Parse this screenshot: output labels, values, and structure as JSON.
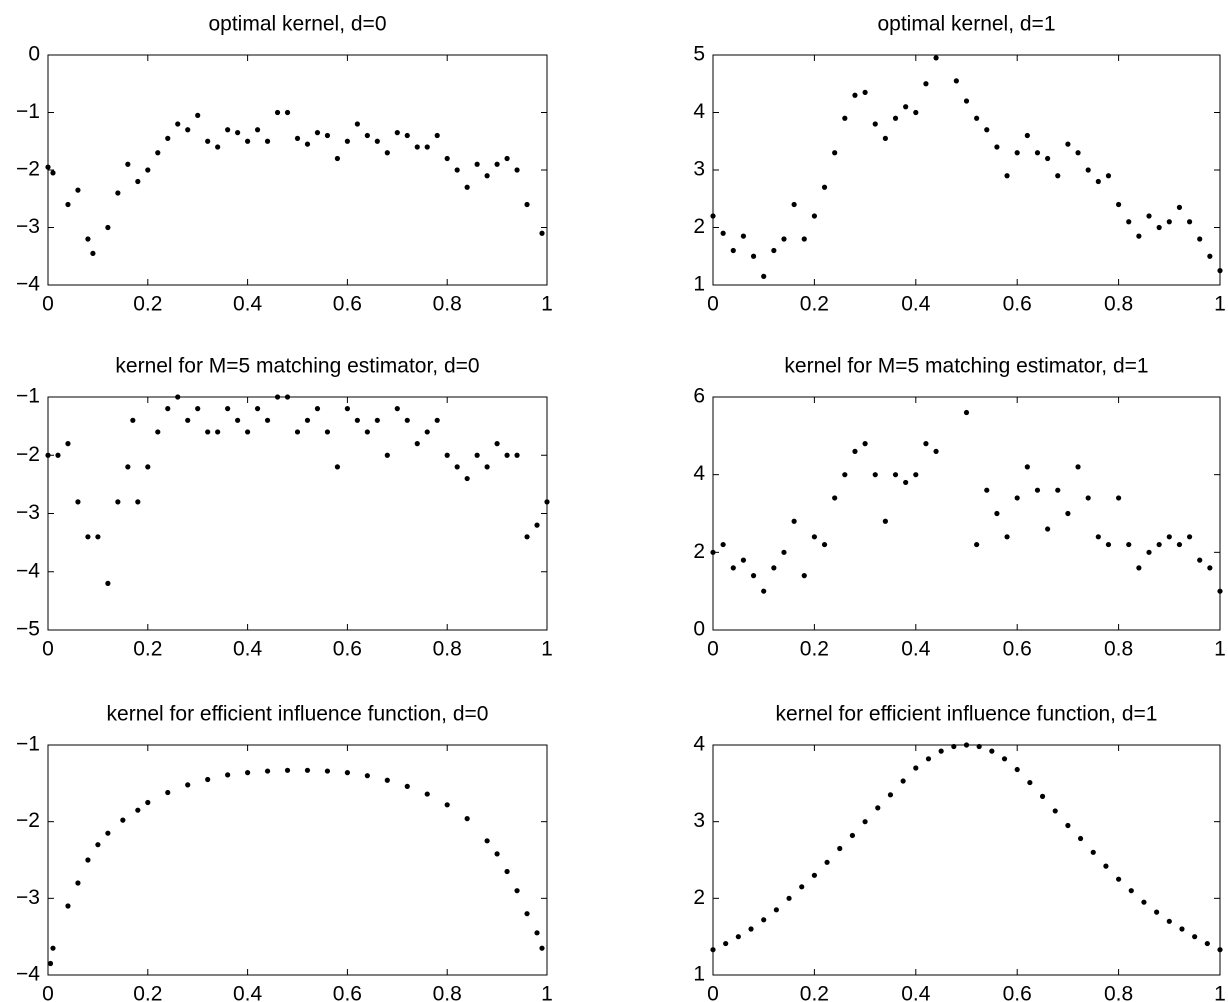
{
  "chart_data": [
    {
      "type": "scatter",
      "title": "optimal kernel, d=0",
      "color": "#000000",
      "xlim": [
        0,
        1
      ],
      "ylim": [
        -4,
        0
      ],
      "xticks": [
        0,
        0.2,
        0.4,
        0.6,
        0.8,
        1
      ],
      "yticks": [
        {
          "value": -4,
          "label": "−4"
        },
        {
          "value": -3,
          "label": "−3"
        },
        {
          "value": -2,
          "label": "−2"
        },
        {
          "value": -1,
          "label": "−1"
        },
        0
      ],
      "x": [
        0,
        0.01,
        0.04,
        0.06,
        0.08,
        0.09,
        0.12,
        0.14,
        0.16,
        0.18,
        0.2,
        0.22,
        0.24,
        0.26,
        0.28,
        0.3,
        0.32,
        0.34,
        0.36,
        0.38,
        0.4,
        0.42,
        0.44,
        0.46,
        0.48,
        0.5,
        0.52,
        0.54,
        0.56,
        0.58,
        0.6,
        0.62,
        0.64,
        0.66,
        0.68,
        0.7,
        0.72,
        0.74,
        0.76,
        0.78,
        0.8,
        0.82,
        0.84,
        0.86,
        0.88,
        0.9,
        0.92,
        0.94,
        0.96,
        0.99
      ],
      "values": [
        -1.95,
        -2.05,
        -2.6,
        -2.35,
        -3.2,
        -3.45,
        -3.0,
        -2.4,
        -1.9,
        -2.2,
        -2.0,
        -1.7,
        -1.45,
        -1.2,
        -1.3,
        -1.05,
        -1.5,
        -1.6,
        -1.3,
        -1.35,
        -1.5,
        -1.3,
        -1.5,
        -1.0,
        -1.0,
        -1.45,
        -1.55,
        -1.35,
        -1.4,
        -1.8,
        -1.5,
        -1.2,
        -1.4,
        -1.5,
        -1.7,
        -1.35,
        -1.4,
        -1.6,
        -1.6,
        -1.4,
        -1.8,
        -2.0,
        -2.3,
        -1.9,
        -2.1,
        -1.9,
        -1.8,
        -2.0,
        -2.6,
        -3.1
      ]
    },
    {
      "type": "scatter",
      "title": "optimal kernel, d=1",
      "color": "#000000",
      "xlim": [
        0,
        1
      ],
      "ylim": [
        1,
        5
      ],
      "xticks": [
        0,
        0.2,
        0.4,
        0.6,
        0.8,
        1
      ],
      "yticks": [
        1,
        2,
        3,
        4,
        5
      ],
      "x": [
        0,
        0.02,
        0.04,
        0.06,
        0.08,
        0.1,
        0.12,
        0.14,
        0.16,
        0.18,
        0.2,
        0.22,
        0.24,
        0.26,
        0.28,
        0.3,
        0.32,
        0.34,
        0.36,
        0.38,
        0.4,
        0.42,
        0.44,
        0.48,
        0.5,
        0.52,
        0.54,
        0.56,
        0.58,
        0.6,
        0.62,
        0.64,
        0.66,
        0.68,
        0.7,
        0.72,
        0.74,
        0.76,
        0.78,
        0.8,
        0.82,
        0.84,
        0.86,
        0.88,
        0.9,
        0.92,
        0.94,
        0.96,
        0.98,
        1
      ],
      "values": [
        2.2,
        1.9,
        1.6,
        1.85,
        1.5,
        1.15,
        1.6,
        1.8,
        2.4,
        1.8,
        2.2,
        2.7,
        3.3,
        3.9,
        4.3,
        4.35,
        3.8,
        3.55,
        3.9,
        4.1,
        4.0,
        4.5,
        4.95,
        4.55,
        4.2,
        3.9,
        3.7,
        3.4,
        2.9,
        3.3,
        3.6,
        3.3,
        3.2,
        2.9,
        3.45,
        3.3,
        3.0,
        2.8,
        2.9,
        2.4,
        2.1,
        1.85,
        2.2,
        2.0,
        2.1,
        2.35,
        2.1,
        1.8,
        1.5,
        1.25
      ]
    },
    {
      "type": "scatter",
      "title": "kernel for M=5 matching estimator, d=0",
      "color": "#000000",
      "xlim": [
        0,
        1
      ],
      "ylim": [
        -5,
        -1
      ],
      "xticks": [
        0,
        0.2,
        0.4,
        0.6,
        0.8,
        1
      ],
      "yticks": [
        {
          "value": -5,
          "label": "−5"
        },
        {
          "value": -4,
          "label": "−4"
        },
        {
          "value": -3,
          "label": "−3"
        },
        {
          "value": -2,
          "label": "−2"
        },
        {
          "value": -1,
          "label": "−1"
        }
      ],
      "x": [
        0,
        0.02,
        0.04,
        0.06,
        0.08,
        0.1,
        0.12,
        0.14,
        0.16,
        0.17,
        0.18,
        0.2,
        0.22,
        0.24,
        0.26,
        0.28,
        0.3,
        0.32,
        0.34,
        0.36,
        0.38,
        0.4,
        0.42,
        0.44,
        0.46,
        0.48,
        0.5,
        0.52,
        0.54,
        0.56,
        0.58,
        0.6,
        0.62,
        0.64,
        0.66,
        0.68,
        0.7,
        0.72,
        0.74,
        0.76,
        0.78,
        0.8,
        0.82,
        0.84,
        0.86,
        0.88,
        0.9,
        0.92,
        0.94,
        0.96,
        0.98,
        1
      ],
      "values": [
        -2.0,
        -2.0,
        -1.8,
        -2.8,
        -3.4,
        -3.4,
        -4.2,
        -2.8,
        -2.2,
        -1.4,
        -2.8,
        -2.2,
        -1.6,
        -1.2,
        -1.0,
        -1.4,
        -1.2,
        -1.6,
        -1.6,
        -1.2,
        -1.4,
        -1.6,
        -1.2,
        -1.4,
        -1.0,
        -1.0,
        -1.6,
        -1.4,
        -1.2,
        -1.6,
        -2.2,
        -1.2,
        -1.4,
        -1.6,
        -1.4,
        -2.0,
        -1.2,
        -1.4,
        -1.8,
        -1.6,
        -1.4,
        -2.0,
        -2.2,
        -2.4,
        -2.0,
        -2.2,
        -1.8,
        -2.0,
        -2.0,
        -3.4,
        -3.2,
        -2.8
      ]
    },
    {
      "type": "scatter",
      "title": "kernel for M=5 matching estimator, d=1",
      "color": "#000000",
      "xlim": [
        0,
        1
      ],
      "ylim": [
        0,
        6
      ],
      "xticks": [
        0,
        0.2,
        0.4,
        0.6,
        0.8,
        1
      ],
      "yticks": [
        0,
        2,
        4,
        6
      ],
      "x": [
        0,
        0.02,
        0.04,
        0.06,
        0.08,
        0.1,
        0.12,
        0.14,
        0.16,
        0.18,
        0.2,
        0.22,
        0.24,
        0.26,
        0.28,
        0.3,
        0.32,
        0.34,
        0.36,
        0.38,
        0.4,
        0.42,
        0.44,
        0.5,
        0.52,
        0.54,
        0.56,
        0.58,
        0.6,
        0.62,
        0.64,
        0.66,
        0.68,
        0.7,
        0.72,
        0.74,
        0.76,
        0.78,
        0.8,
        0.82,
        0.84,
        0.86,
        0.88,
        0.9,
        0.92,
        0.94,
        0.96,
        0.98,
        1
      ],
      "values": [
        2.0,
        2.2,
        1.6,
        1.8,
        1.4,
        1.0,
        1.6,
        2.0,
        2.8,
        1.4,
        2.4,
        2.2,
        3.4,
        4.0,
        4.6,
        4.8,
        4.0,
        2.8,
        4.0,
        3.8,
        4.0,
        4.8,
        4.6,
        5.6,
        2.2,
        3.6,
        3.0,
        2.4,
        3.4,
        4.2,
        3.6,
        2.6,
        3.6,
        3.0,
        4.2,
        3.4,
        2.4,
        2.2,
        3.4,
        2.2,
        1.6,
        2.0,
        2.2,
        2.4,
        2.2,
        2.4,
        1.8,
        1.6,
        1.0
      ]
    },
    {
      "type": "scatter",
      "title": "kernel for efficient influence function, d=0",
      "color": "#000000",
      "xlim": [
        0,
        1
      ],
      "ylim": [
        -4,
        -1
      ],
      "xticks": [
        0,
        0.2,
        0.4,
        0.6,
        0.8,
        1
      ],
      "yticks": [
        {
          "value": -4,
          "label": "−4"
        },
        {
          "value": -3,
          "label": "−3"
        },
        {
          "value": -2,
          "label": "−2"
        },
        {
          "value": -1,
          "label": "−1"
        }
      ],
      "x": [
        0.005,
        0.01,
        0.04,
        0.06,
        0.08,
        0.1,
        0.12,
        0.15,
        0.18,
        0.2,
        0.24,
        0.28,
        0.32,
        0.36,
        0.4,
        0.44,
        0.48,
        0.52,
        0.56,
        0.6,
        0.64,
        0.68,
        0.72,
        0.76,
        0.8,
        0.84,
        0.88,
        0.9,
        0.92,
        0.94,
        0.96,
        0.98,
        0.99
      ],
      "values": [
        -3.85,
        -3.65,
        -3.1,
        -2.8,
        -2.5,
        -2.3,
        -2.15,
        -1.98,
        -1.85,
        -1.75,
        -1.62,
        -1.52,
        -1.45,
        -1.39,
        -1.36,
        -1.34,
        -1.33,
        -1.33,
        -1.34,
        -1.36,
        -1.4,
        -1.46,
        -1.54,
        -1.64,
        -1.78,
        -1.96,
        -2.25,
        -2.42,
        -2.65,
        -2.9,
        -3.2,
        -3.45,
        -3.65
      ]
    },
    {
      "type": "scatter",
      "title": "kernel for efficient influence function, d=1",
      "color": "#000000",
      "xlim": [
        0,
        1
      ],
      "ylim": [
        1,
        4
      ],
      "xticks": [
        0,
        0.2,
        0.4,
        0.6,
        0.8,
        1
      ],
      "yticks": [
        1,
        2,
        3,
        4
      ],
      "x": [
        0,
        0.025,
        0.05,
        0.075,
        0.1,
        0.125,
        0.15,
        0.175,
        0.2,
        0.225,
        0.25,
        0.275,
        0.3,
        0.325,
        0.35,
        0.375,
        0.4,
        0.425,
        0.45,
        0.475,
        0.5,
        0.525,
        0.55,
        0.575,
        0.6,
        0.625,
        0.65,
        0.675,
        0.7,
        0.725,
        0.75,
        0.775,
        0.8,
        0.825,
        0.85,
        0.875,
        0.9,
        0.925,
        0.95,
        0.975,
        1
      ],
      "values": [
        1.33,
        1.41,
        1.5,
        1.6,
        1.72,
        1.85,
        2.0,
        2.15,
        2.3,
        2.47,
        2.65,
        2.82,
        3.0,
        3.18,
        3.35,
        3.53,
        3.7,
        3.82,
        3.92,
        3.98,
        4.0,
        3.98,
        3.92,
        3.82,
        3.68,
        3.51,
        3.33,
        3.14,
        2.95,
        2.78,
        2.6,
        2.42,
        2.25,
        2.1,
        1.95,
        1.82,
        1.7,
        1.6,
        1.5,
        1.41,
        1.33
      ]
    }
  ]
}
